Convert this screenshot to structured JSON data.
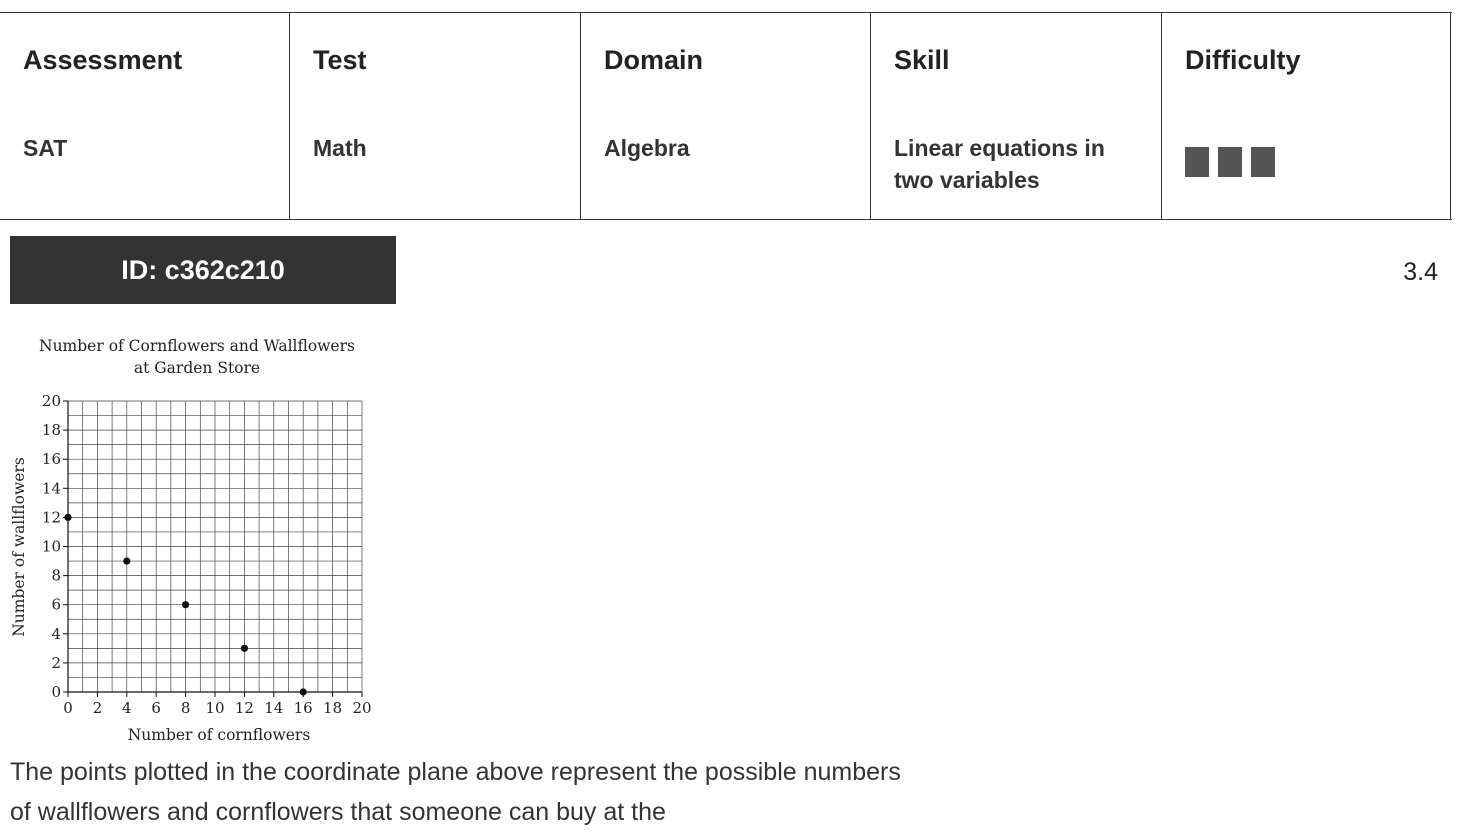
{
  "meta": {
    "headers": [
      "Assessment",
      "Test",
      "Domain",
      "Skill",
      "Difficulty"
    ],
    "values": [
      "SAT",
      "Math",
      "Algebra",
      "Linear equations in two variables"
    ],
    "difficulty_level": 3,
    "difficulty_max": 3
  },
  "question_id": "ID: c362c210",
  "version": "3.4",
  "chart_data": {
    "type": "scatter",
    "title_line1": "Number of Cornflowers and Wallflowers",
    "title_line2": "at Garden Store",
    "xlabel": "Number of cornflowers",
    "ylabel": "Number of wallflowers",
    "xlim": [
      0,
      20
    ],
    "ylim": [
      0,
      20
    ],
    "x_ticks": [
      0,
      2,
      4,
      6,
      8,
      10,
      12,
      14,
      16,
      18,
      20
    ],
    "y_ticks": [
      0,
      2,
      4,
      6,
      8,
      10,
      12,
      14,
      16,
      18,
      20
    ],
    "grid": true,
    "grid_step": 1,
    "points": [
      {
        "x": 0,
        "y": 12
      },
      {
        "x": 4,
        "y": 9
      },
      {
        "x": 8,
        "y": 6
      },
      {
        "x": 12,
        "y": 3
      },
      {
        "x": 16,
        "y": 0
      }
    ]
  },
  "question_text": "The points plotted in the coordinate plane above represent the possible numbers of wallflowers and cornflowers that someone can buy at the"
}
